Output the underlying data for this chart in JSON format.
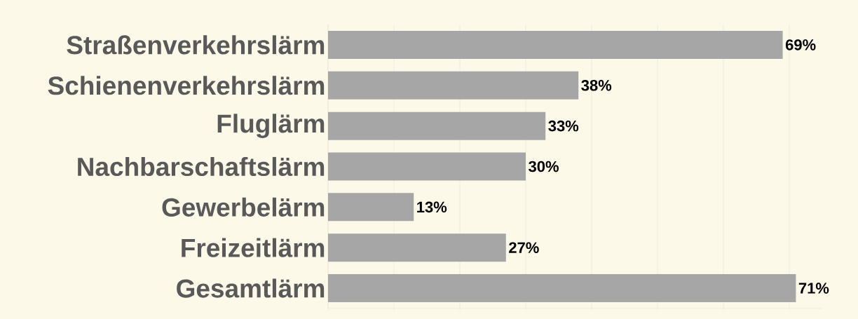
{
  "chart_data": {
    "type": "bar",
    "orientation": "horizontal",
    "categories": [
      "Straßenverkehrslärm",
      "Schienenverkehrslärm",
      "Fluglärm",
      "Nachbarschaftslärm",
      "Gewerbelärm",
      "Freizeitlärm",
      "Gesamtlärm"
    ],
    "values": [
      69,
      38,
      33,
      30,
      13,
      27,
      71
    ],
    "value_labels": [
      "69%",
      "38%",
      "33%",
      "30%",
      "13%",
      "27%",
      "71%"
    ],
    "color": "#a6a6a6",
    "xlim": [
      0,
      75
    ],
    "grid": "x",
    "tick_labels": "y"
  }
}
